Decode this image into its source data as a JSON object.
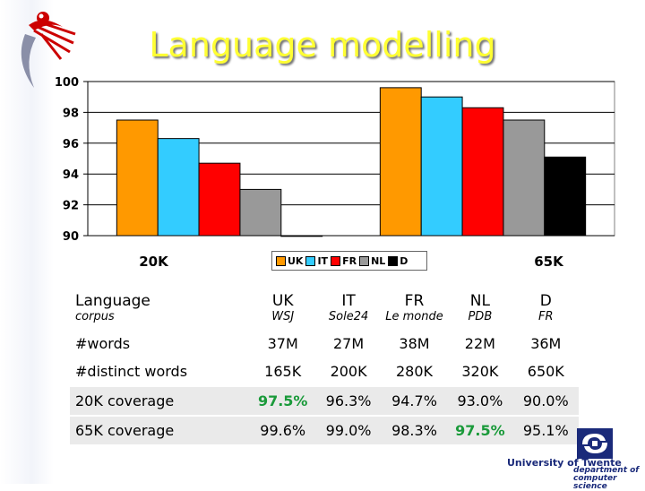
{
  "slide": {
    "title": "Language modelling"
  },
  "chart_data": {
    "type": "bar",
    "ylim": [
      90,
      100
    ],
    "yticks": [
      "90",
      "92",
      "94",
      "96",
      "98",
      "100"
    ],
    "categories": [
      "20K",
      "65K"
    ],
    "grid": true,
    "legend_position": "bottom-center",
    "series": [
      {
        "name": "UK",
        "color": "#ff9900",
        "values": [
          97.5,
          99.6
        ]
      },
      {
        "name": "IT",
        "color": "#33ccff",
        "values": [
          96.3,
          99.0
        ]
      },
      {
        "name": "FR",
        "color": "#ff0000",
        "values": [
          94.7,
          98.3
        ]
      },
      {
        "name": "NL",
        "color": "#999999",
        "values": [
          93.0,
          97.5
        ]
      },
      {
        "name": "D",
        "color": "#000000",
        "values": [
          90.0,
          95.1
        ]
      }
    ]
  },
  "table": {
    "languages": {
      "label": "Language",
      "values": [
        "UK",
        "IT",
        "FR",
        "NL",
        "D"
      ]
    },
    "corpus": {
      "label": "corpus",
      "values": [
        "WSJ",
        "Sole24",
        "Le monde",
        "PDB",
        "FR"
      ]
    },
    "words": {
      "label": "#words",
      "values": [
        "37M",
        "27M",
        "38M",
        "22M",
        "36M"
      ]
    },
    "distinct": {
      "label": "#distinct words",
      "values": [
        "165K",
        "200K",
        "280K",
        "320K",
        "650K"
      ]
    },
    "cov20": {
      "label": "20K coverage",
      "values": [
        "97.5%",
        "96.3%",
        "94.7%",
        "93.0%",
        "90.0%"
      ],
      "highlight_index": 0
    },
    "cov65": {
      "label": "65K coverage",
      "values": [
        "99.6%",
        "99.0%",
        "98.3%",
        "97.5%",
        "95.1%"
      ],
      "highlight_index": 3
    }
  },
  "branding": {
    "university": "University of Twente",
    "department": [
      "department of",
      "computer science"
    ]
  },
  "colors": {
    "title": "#ffff33",
    "highlight": "#1a9a3a"
  }
}
